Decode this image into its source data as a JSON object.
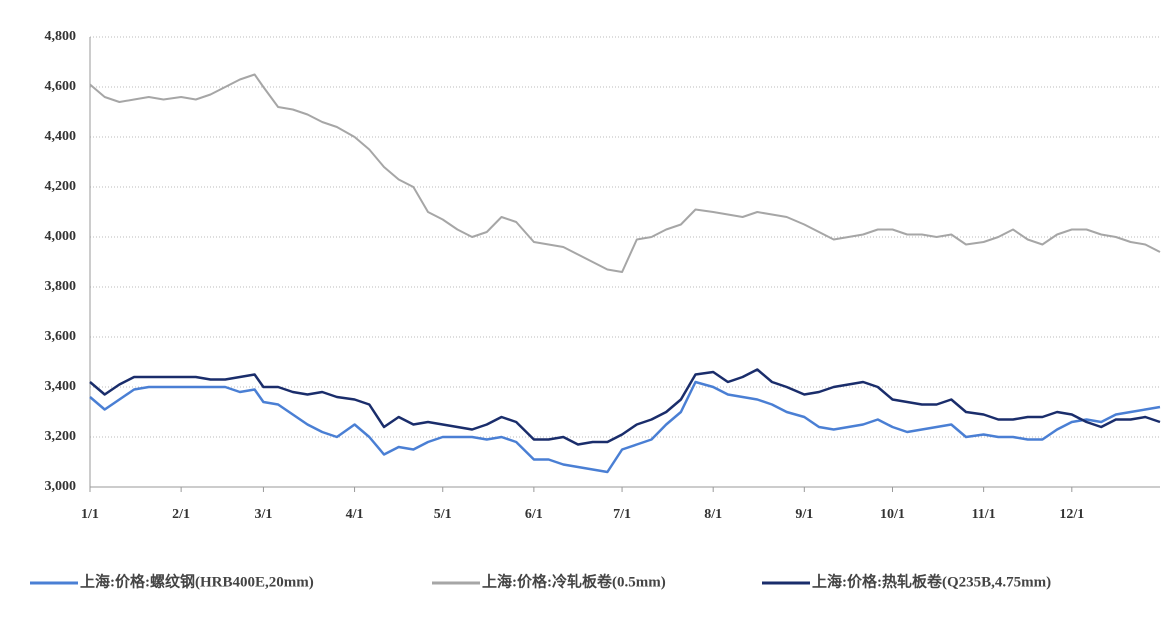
{
  "chart_data": {
    "type": "line",
    "x": [
      "1/1",
      "1/6",
      "1/11",
      "1/16",
      "1/21",
      "1/26",
      "2/1",
      "2/6",
      "2/11",
      "2/16",
      "2/21",
      "2/26",
      "3/1",
      "3/6",
      "3/11",
      "3/16",
      "3/21",
      "3/26",
      "4/1",
      "4/6",
      "4/11",
      "4/16",
      "4/21",
      "4/26",
      "5/1",
      "5/6",
      "5/11",
      "5/16",
      "5/21",
      "5/26",
      "6/1",
      "6/6",
      "6/11",
      "6/16",
      "6/21",
      "6/26",
      "7/1",
      "7/6",
      "7/11",
      "7/16",
      "7/21",
      "7/26",
      "8/1",
      "8/6",
      "8/11",
      "8/16",
      "8/21",
      "8/26",
      "9/1",
      "9/6",
      "9/11",
      "9/16",
      "9/21",
      "9/26",
      "10/1",
      "10/6",
      "10/11",
      "10/16",
      "10/21",
      "10/26",
      "11/1",
      "11/6",
      "11/11",
      "11/16",
      "11/21",
      "11/26",
      "12/1",
      "12/6",
      "12/11",
      "12/16",
      "12/21",
      "12/26",
      "12/31"
    ],
    "series": [
      {
        "name": "上海:价格:螺纹钢(HRB400E,20mm)",
        "color": "#4a7fd4",
        "values": [
          3360,
          3310,
          3350,
          3390,
          3400,
          3400,
          3400,
          3400,
          3400,
          3400,
          3380,
          3390,
          3340,
          3330,
          3290,
          3250,
          3220,
          3200,
          3250,
          3200,
          3130,
          3160,
          3150,
          3180,
          3200,
          3200,
          3200,
          3190,
          3200,
          3180,
          3110,
          3110,
          3090,
          3080,
          3070,
          3060,
          3150,
          3170,
          3190,
          3250,
          3300,
          3420,
          3400,
          3370,
          3360,
          3350,
          3330,
          3300,
          3280,
          3240,
          3230,
          3240,
          3250,
          3270,
          3240,
          3220,
          3230,
          3240,
          3250,
          3200,
          3210,
          3200,
          3200,
          3190,
          3190,
          3230,
          3260,
          3270,
          3260,
          3290,
          3300,
          3310,
          3320
        ]
      },
      {
        "name": "上海:价格:冷轧板卷(0.5mm)",
        "color": "#a6a6a6",
        "values": [
          4610,
          4560,
          4540,
          4550,
          4560,
          4550,
          4560,
          4550,
          4570,
          4600,
          4630,
          4650,
          4600,
          4520,
          4510,
          4490,
          4460,
          4440,
          4400,
          4350,
          4280,
          4230,
          4200,
          4100,
          4070,
          4030,
          4000,
          4020,
          4080,
          4060,
          3980,
          3970,
          3960,
          3930,
          3900,
          3870,
          3860,
          3990,
          4000,
          4030,
          4050,
          4110,
          4100,
          4090,
          4080,
          4100,
          4090,
          4080,
          4050,
          4020,
          3990,
          4000,
          4010,
          4030,
          4030,
          4010,
          4010,
          4000,
          4010,
          3970,
          3980,
          4000,
          4030,
          3990,
          3970,
          4010,
          4030,
          4030,
          4010,
          4000,
          3980,
          3970,
          3940
        ]
      },
      {
        "name": "上海:价格:热轧板卷(Q235B,4.75mm)",
        "color": "#1a2d6b",
        "values": [
          3420,
          3370,
          3410,
          3440,
          3440,
          3440,
          3440,
          3440,
          3430,
          3430,
          3440,
          3450,
          3400,
          3400,
          3380,
          3370,
          3380,
          3360,
          3350,
          3330,
          3240,
          3280,
          3250,
          3260,
          3250,
          3240,
          3230,
          3250,
          3280,
          3260,
          3190,
          3190,
          3200,
          3170,
          3180,
          3180,
          3210,
          3250,
          3270,
          3300,
          3350,
          3450,
          3460,
          3420,
          3440,
          3470,
          3420,
          3400,
          3370,
          3380,
          3400,
          3410,
          3420,
          3400,
          3350,
          3340,
          3330,
          3330,
          3350,
          3300,
          3290,
          3270,
          3270,
          3280,
          3280,
          3300,
          3290,
          3260,
          3240,
          3270,
          3270,
          3280,
          3260
        ]
      }
    ],
    "xlim": [
      "1/1",
      "12/31"
    ],
    "xticks": [
      "1/1",
      "2/1",
      "3/1",
      "4/1",
      "5/1",
      "6/1",
      "7/1",
      "8/1",
      "9/1",
      "10/1",
      "11/1",
      "12/1"
    ],
    "ylim": [
      3000,
      4800
    ],
    "yticks": [
      {
        "value": 3000,
        "label": "3,000"
      },
      {
        "value": 3200,
        "label": "3,200"
      },
      {
        "value": 3400,
        "label": "3,400"
      },
      {
        "value": 3600,
        "label": "3,600"
      },
      {
        "value": 3800,
        "label": "3,800"
      },
      {
        "value": 4000,
        "label": "4,000"
      },
      {
        "value": 4200,
        "label": "4,200"
      },
      {
        "value": 4400,
        "label": "4,400"
      },
      {
        "value": 4600,
        "label": "4,600"
      },
      {
        "value": 4800,
        "label": "4,800"
      }
    ],
    "grid": true,
    "legend": "bottom"
  }
}
